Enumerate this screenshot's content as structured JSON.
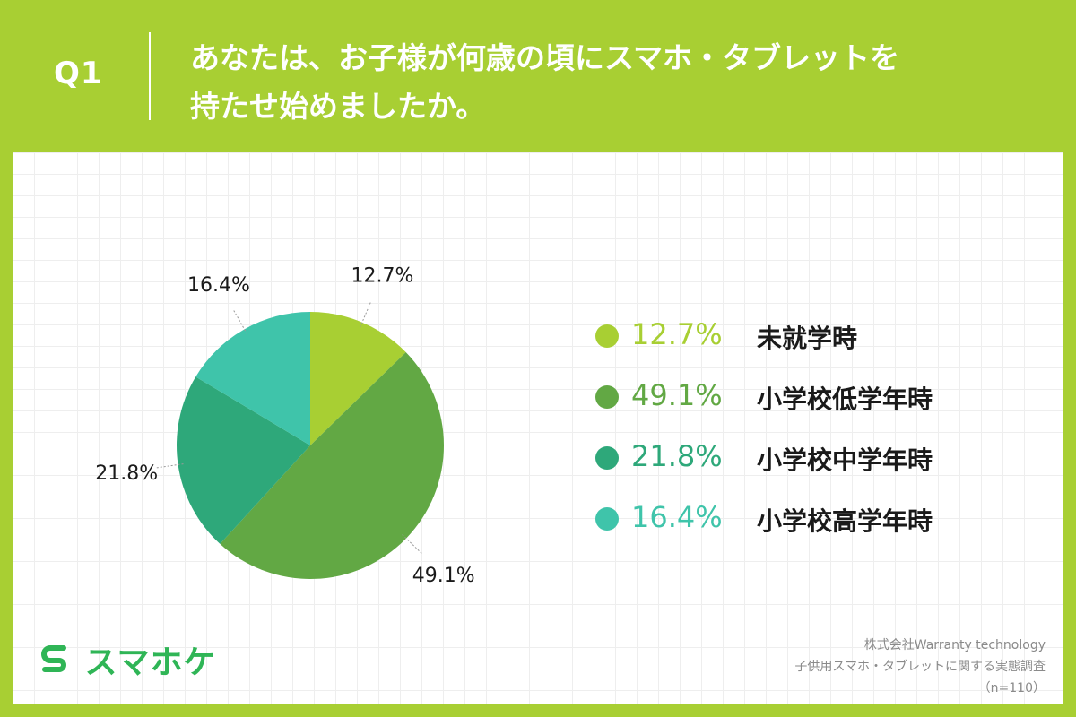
{
  "header": {
    "question_number": "Q1",
    "question_line1": "あなたは、お子様が何歳の頃にスマホ・タブレットを",
    "question_line2": "持たせ始めましたか。"
  },
  "chart_data": {
    "type": "pie",
    "title": "",
    "series": [
      {
        "label": "未就学時",
        "value": 12.7,
        "value_text": "12.7%",
        "color": "#a8cf33"
      },
      {
        "label": "小学校低学年時",
        "value": 49.1,
        "value_text": "49.1%",
        "color": "#62a844"
      },
      {
        "label": "小学校中学年時",
        "value": 21.8,
        "value_text": "21.8%",
        "color": "#2ea87a"
      },
      {
        "label": "小学校高学年時",
        "value": 16.4,
        "value_text": "16.4%",
        "color": "#3fc4aa"
      }
    ],
    "start_angle": "12 o'clock",
    "direction": "clockwise",
    "legend_position": "right"
  },
  "brand": {
    "logo_text": "スマホケ",
    "logo_color": "#2fb556"
  },
  "footer": {
    "company": "株式会社Warranty technology",
    "survey": "子供用スマホ・タブレットに関する実態調査",
    "sample": "（n=110）"
  },
  "colors": {
    "background": "#a8cf33",
    "card": "#ffffff"
  }
}
